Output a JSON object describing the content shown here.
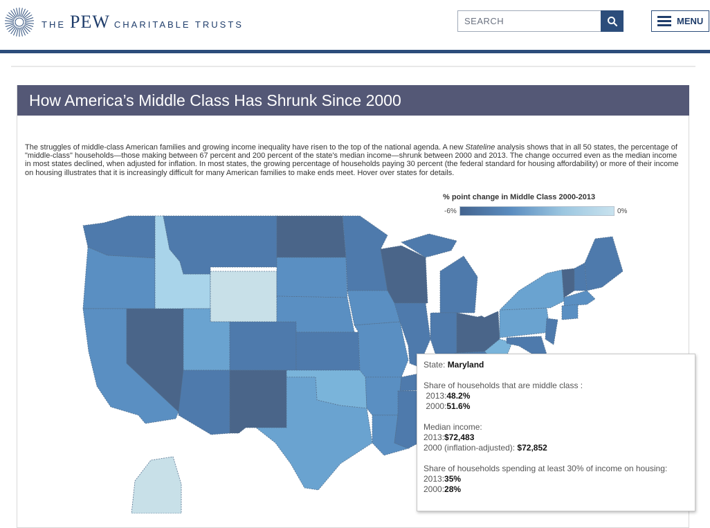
{
  "header": {
    "brand_small_1": "THE",
    "brand_big": "PEW",
    "brand_small_2": "CHARITABLE TRUSTS",
    "search_placeholder": "SEARCH",
    "menu_label": "MENU",
    "colors": {
      "brand": "#2c4d7b",
      "title_bar": "#545876"
    },
    "icons": [
      "pew-sunburst-logo-icon",
      "search-icon",
      "hamburger-menu-icon"
    ]
  },
  "article": {
    "title": "How America’s Middle Class Has Shrunk Since 2000",
    "intro_before": "The struggles of middle-class American families and growing income inequality have risen to the top of the national agenda. A new ",
    "intro_em": "Stateline",
    "intro_after": " analysis shows that in all 50 states, the percentage of \"middle-class\" households—those making between 67 percent and 200 percent of the state's median income—shrunk between 2000 and 2013. The change occurred even as the median income in most states declined, when adjusted for inflation. In most states, the growing percentage of households paying 30 percent (the federal standard for housing affordability) or more of their income on housing illustrates that it is increasingly difficult for many American families to make ends meet. Hover over states for details."
  },
  "legend": {
    "title": "% point change in Middle Class 2000-2013",
    "min_label": "-6%",
    "max_label": "0%",
    "color_range": [
      "#44648f",
      "#5b8dc0",
      "#9bc6e0",
      "#c8e2ee"
    ]
  },
  "map": {
    "highlighted_state": "Maryland",
    "colors": {
      "darkest": "#4a6589",
      "dark": "#4e7aac",
      "medium": "#5a8fc2",
      "light": "#6aa3d0",
      "lighter": "#7ab4da",
      "pale": "#a9d4ea",
      "palest": "#c8e0e8"
    }
  },
  "tooltip": {
    "state_label": "State: ",
    "state_name": "Maryland",
    "share_heading": "Share of households that are middle class :",
    "y2013_label": "2013:",
    "share_2013": "48.2%",
    "y2000_label": "2000:",
    "share_2000": "51.6%",
    "income_heading": "Median income:",
    "income_2013_label": "2013:",
    "income_2013": "$72,483",
    "income_2000_label": "2000 (inflation-adjusted): ",
    "income_2000": "$72,852",
    "housing_heading": "Share of households spending at least 30% of income on housing:",
    "housing_2013_label": "2013:",
    "housing_2013": "35%",
    "housing_2000_label": "2000:",
    "housing_2000": "28%"
  }
}
